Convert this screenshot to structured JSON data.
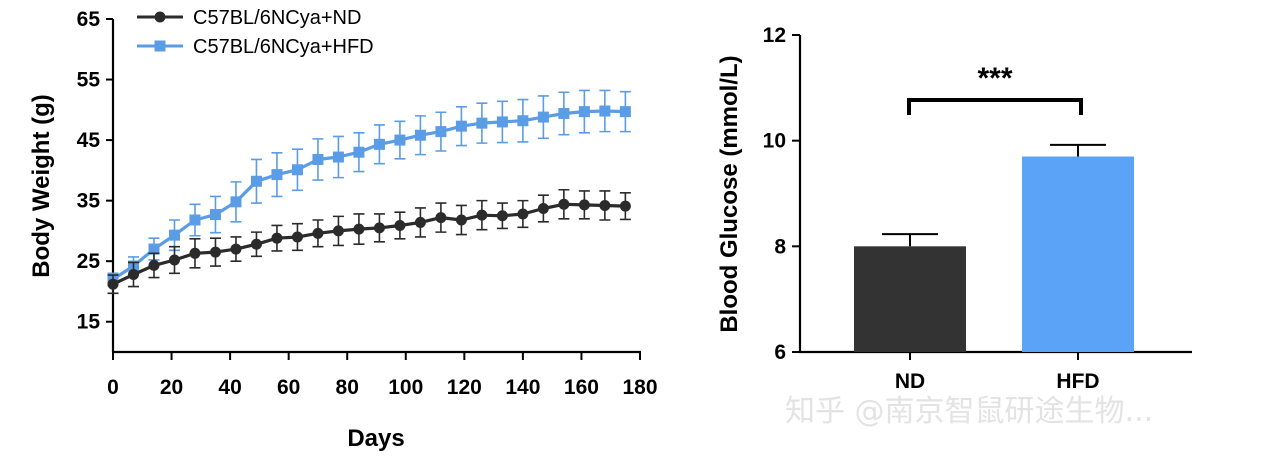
{
  "chart_data": [
    {
      "type": "line",
      "xlabel": "Days",
      "ylabel": "Body Weight (g)",
      "xlim": [
        0,
        180
      ],
      "ylim": [
        10,
        65
      ],
      "xticks": [
        "0",
        "20",
        "40",
        "60",
        "80",
        "100",
        "120",
        "140",
        "160",
        "180"
      ],
      "yticks": [
        "15",
        "25",
        "35",
        "45",
        "55",
        "65"
      ],
      "legend_position": "top-left",
      "x": [
        0,
        7,
        14,
        21,
        28,
        35,
        42,
        49,
        56,
        63,
        70,
        77,
        84,
        91,
        98,
        105,
        112,
        119,
        126,
        133,
        140,
        147,
        154,
        161,
        168,
        175
      ],
      "series": [
        {
          "name": "C57BL/6NCya+ND",
          "color": "#2b2b2b",
          "values": [
            21.2,
            22.8,
            24.3,
            25.2,
            26.3,
            26.5,
            27.0,
            27.8,
            28.8,
            29.0,
            29.6,
            30.0,
            30.3,
            30.5,
            30.9,
            31.4,
            32.2,
            31.8,
            32.6,
            32.5,
            32.8,
            33.7,
            34.4,
            34.3,
            34.2,
            34.1
          ],
          "error": [
            1.5,
            2.0,
            2.0,
            2.2,
            2.4,
            2.3,
            2.0,
            2.0,
            2.1,
            2.2,
            2.2,
            2.4,
            2.5,
            2.3,
            2.2,
            2.4,
            2.4,
            2.4,
            2.4,
            2.1,
            2.2,
            2.2,
            2.4,
            2.3,
            2.4,
            2.2
          ]
        },
        {
          "name": "C57BL/6NCya+HFD",
          "color": "#5b9ce6",
          "values": [
            22.0,
            24.2,
            27.0,
            29.3,
            31.8,
            32.7,
            34.8,
            38.2,
            39.3,
            40.1,
            41.8,
            42.2,
            43.0,
            44.3,
            45.0,
            45.8,
            46.4,
            47.3,
            47.8,
            48.0,
            48.2,
            48.8,
            49.4,
            49.7,
            49.8,
            49.7
          ],
          "error": [
            1.0,
            1.5,
            1.8,
            2.5,
            2.6,
            3.0,
            3.3,
            3.6,
            3.6,
            3.4,
            3.4,
            3.4,
            3.2,
            3.2,
            3.1,
            3.2,
            3.2,
            3.2,
            3.3,
            3.4,
            3.5,
            3.5,
            3.5,
            3.5,
            3.4,
            3.3
          ]
        }
      ]
    },
    {
      "type": "bar",
      "ylabel": "Blood Glucose (mmol/L)",
      "ylim": [
        6,
        12
      ],
      "yticks": [
        "6",
        "8",
        "10",
        "12"
      ],
      "categories": [
        "ND",
        "HFD"
      ],
      "values": [
        8.0,
        9.7
      ],
      "error": [
        0.23,
        0.22
      ],
      "colors": [
        "#333333",
        "#5aa3f7"
      ],
      "significance": "***"
    }
  ],
  "watermark": "知乎 @南京智鼠研途生物..."
}
